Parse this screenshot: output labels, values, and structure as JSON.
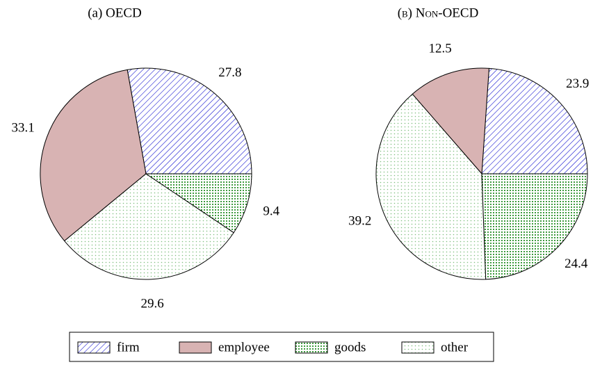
{
  "legend": {
    "labels": [
      "firm",
      "employee",
      "goods",
      "other"
    ],
    "colors": [
      "#0000cc",
      "#d8b3b3",
      "#007a00",
      "#7fbf7f"
    ],
    "patterns": [
      "hatch",
      "solid",
      "dense-dots",
      "sparse-dots"
    ]
  },
  "chart_data": [
    {
      "type": "pie",
      "title": "(a) OECD",
      "values": [
        27.8,
        33.1,
        9.4,
        29.6
      ]
    },
    {
      "type": "pie",
      "title": "(b) Non-OECD",
      "values": [
        23.9,
        12.5,
        24.4,
        39.2
      ]
    }
  ]
}
